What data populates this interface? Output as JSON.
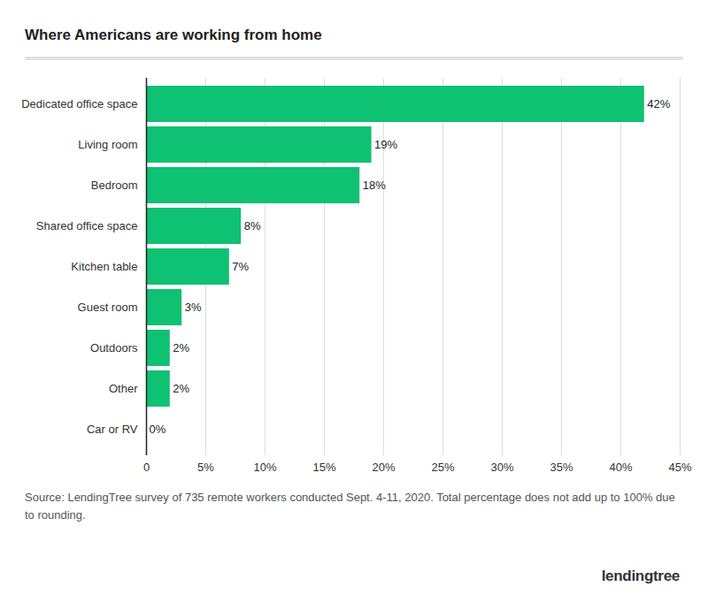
{
  "chart_data": {
    "type": "bar",
    "orientation": "horizontal",
    "title": "Where Americans are working from home",
    "categories": [
      "Dedicated office space",
      "Living room",
      "Bedroom",
      "Shared office space",
      "Kitchen table",
      "Guest room",
      "Outdoors",
      "Other",
      "Car or RV"
    ],
    "values": [
      42,
      19,
      18,
      8,
      7,
      3,
      2,
      2,
      0
    ],
    "value_labels": [
      "42%",
      "19%",
      "18%",
      "8%",
      "7%",
      "3%",
      "2%",
      "2%",
      "0%"
    ],
    "data_labels": true,
    "color": "#0fc172",
    "xlim": [
      0,
      45
    ],
    "xticks": [
      0,
      {
        "value": 5,
        "label": "5%"
      },
      {
        "value": 10,
        "label": "10%"
      },
      {
        "value": 15,
        "label": "15%"
      },
      {
        "value": 20,
        "label": "20%"
      },
      {
        "value": 25,
        "label": "25%"
      },
      {
        "value": 30,
        "label": "30%"
      },
      {
        "value": 35,
        "label": "35%"
      },
      {
        "value": 40,
        "label": "40%"
      },
      {
        "value": 45,
        "label": "45%"
      }
    ],
    "grid": true,
    "caption": "Source: LendingTree survey of 735 remote workers conducted Sept. 4-11, 2020. Total percentage does not add up to 100% due to rounding.",
    "brand": "lendingtree"
  }
}
